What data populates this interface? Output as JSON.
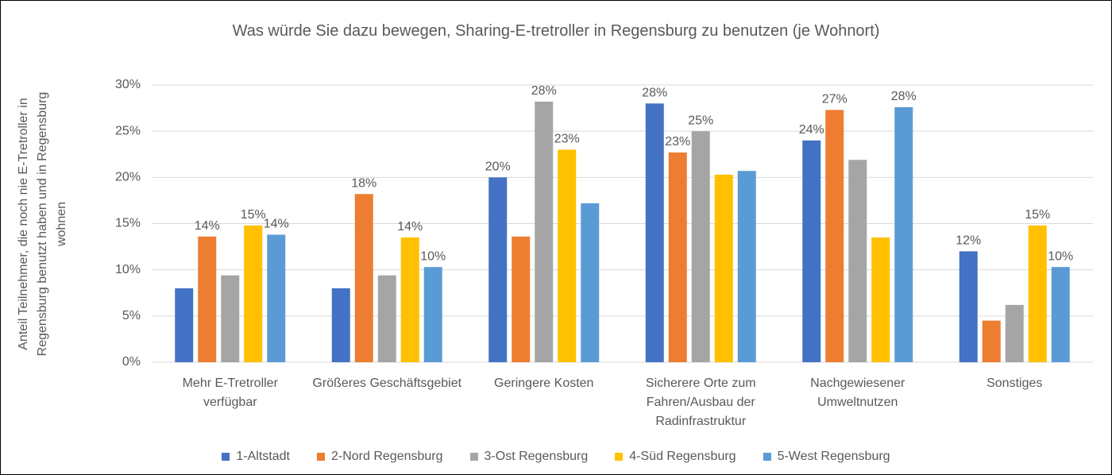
{
  "chart_data": {
    "type": "bar",
    "title": "Was würde Sie dazu bewegen, Sharing-E-tretroller in Regensburg zu benutzen (je Wohnort)",
    "y_label": "Anteil Teilnehmer, die noch nie E-Tretroller in Regensburg benutzt haben und in Regensburg wohnen",
    "categories": [
      "Mehr E-Tretroller verfügbar",
      "Größeres Geschäftsgebiet",
      "Geringere Kosten",
      "Sicherere Orte zum Fahren/Ausbau der Radinfrastruktur",
      "Nachgewiesener Umweltnutzen",
      "Sonstiges"
    ],
    "series": [
      {
        "name": "1-Altstadt",
        "color": "#4472c4",
        "values": [
          8,
          8,
          20,
          28,
          24,
          12
        ],
        "value_labels": [
          null,
          null,
          "20%",
          "28%",
          "24%",
          "12%"
        ]
      },
      {
        "name": "2-Nord Regensburg",
        "color": "#ed7d31",
        "values": [
          13.6,
          18.2,
          13.6,
          22.7,
          27.3,
          4.5
        ],
        "value_labels": [
          "14%",
          "18%",
          null,
          "23%",
          "27%",
          null
        ]
      },
      {
        "name": "3-Ost Regensburg",
        "color": "#a5a5a5",
        "values": [
          9.4,
          9.4,
          28.2,
          25,
          21.9,
          6.2
        ],
        "value_labels": [
          null,
          null,
          "28%",
          "25%",
          null,
          null
        ]
      },
      {
        "name": "4-Süd Regensburg",
        "color": "#ffc000",
        "values": [
          14.8,
          13.5,
          23,
          20.3,
          13.5,
          14.8
        ],
        "value_labels": [
          "15%",
          "14%",
          "23%",
          null,
          null,
          "15%"
        ]
      },
      {
        "name": "5-West Regensburg",
        "color": "#5b9bd5",
        "values": [
          13.8,
          10.3,
          17.2,
          20.7,
          27.6,
          10.3
        ],
        "value_labels": [
          "14%",
          "10%",
          null,
          null,
          "28%",
          "10%"
        ]
      }
    ],
    "ylim": [
      0,
      30
    ],
    "yticks": [
      {
        "value": 0,
        "label": "0%"
      },
      {
        "value": 5,
        "label": "5%"
      },
      {
        "value": 10,
        "label": "10%"
      },
      {
        "value": 15,
        "label": "15%"
      },
      {
        "value": 20,
        "label": "20%"
      },
      {
        "value": 25,
        "label": "25%"
      },
      {
        "value": 30,
        "label": "30%"
      }
    ],
    "grid": true,
    "legend": "bottom"
  }
}
